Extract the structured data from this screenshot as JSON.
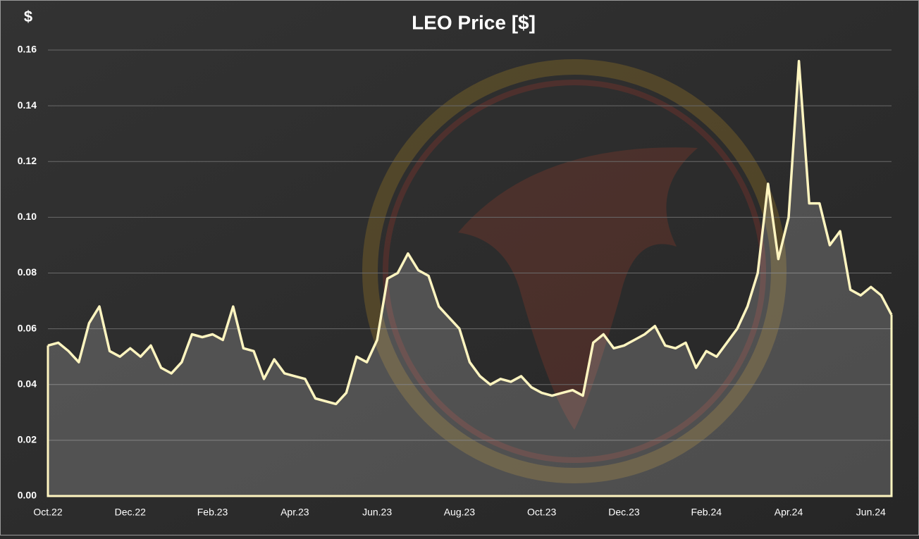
{
  "chart_data": {
    "type": "area-line",
    "title": "LEO Price [$]",
    "y_label": "$",
    "categories": [
      "Oct.22",
      null,
      null,
      null,
      null,
      null,
      null,
      null,
      "Dec.22",
      null,
      null,
      null,
      null,
      null,
      null,
      null,
      "Feb.23",
      null,
      null,
      null,
      null,
      null,
      null,
      null,
      "Apr.23",
      null,
      null,
      null,
      null,
      null,
      null,
      null,
      "Jun.23",
      null,
      null,
      null,
      null,
      null,
      null,
      null,
      "Aug.23",
      null,
      null,
      null,
      null,
      null,
      null,
      null,
      "Oct.23",
      null,
      null,
      null,
      null,
      null,
      null,
      null,
      "Dec.23",
      null,
      null,
      null,
      null,
      null,
      null,
      null,
      "Feb.24",
      null,
      null,
      null,
      null,
      null,
      null,
      null,
      "Apr.24",
      null,
      null,
      null,
      null,
      null,
      null,
      null,
      "Jun.24",
      null,
      null
    ],
    "series": [
      {
        "name": "LEO Price",
        "color": "#fff5c0",
        "values": [
          0.054,
          0.055,
          0.052,
          0.048,
          0.062,
          0.068,
          0.052,
          0.05,
          0.053,
          0.05,
          0.054,
          0.046,
          0.044,
          0.048,
          0.058,
          0.057,
          0.058,
          0.056,
          0.068,
          0.053,
          0.052,
          0.042,
          0.049,
          0.044,
          0.043,
          0.042,
          0.035,
          0.034,
          0.033,
          0.037,
          0.05,
          0.048,
          0.056,
          0.078,
          0.08,
          0.087,
          0.081,
          0.079,
          0.068,
          0.064,
          0.06,
          0.048,
          0.043,
          0.04,
          0.042,
          0.041,
          0.043,
          0.039,
          0.037,
          0.036,
          0.037,
          0.038,
          0.036,
          0.055,
          0.058,
          0.053,
          0.054,
          0.056,
          0.058,
          0.061,
          0.054,
          0.053,
          0.055,
          0.046,
          0.052,
          0.05,
          0.055,
          0.06,
          0.068,
          0.08,
          0.112,
          0.085,
          0.1,
          0.156,
          0.105,
          0.105,
          0.09,
          0.095,
          0.074,
          0.072,
          0.075,
          0.072,
          0.065
        ]
      }
    ],
    "ylim": [
      0,
      0.16
    ],
    "yticks": [
      {
        "value": 0,
        "label": "0.00"
      },
      {
        "value": 0.02,
        "label": "0.02"
      },
      {
        "value": 0.04,
        "label": "0.04"
      },
      {
        "value": 0.06,
        "label": "0.06"
      },
      {
        "value": 0.08,
        "label": "0.08"
      },
      {
        "value": 0.1,
        "label": "0.10"
      },
      {
        "value": 0.12,
        "label": "0.12"
      },
      {
        "value": 0.14,
        "label": "0.14"
      },
      {
        "value": 0.16,
        "label": "0.16"
      }
    ],
    "grid": true
  }
}
